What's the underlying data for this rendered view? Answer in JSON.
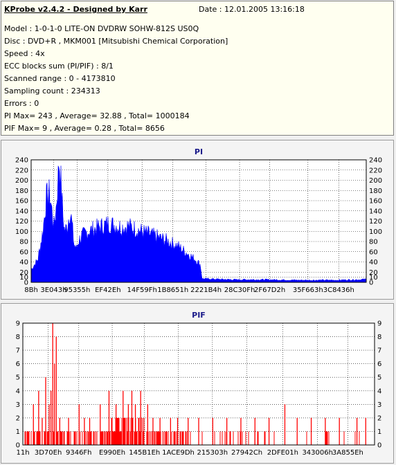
{
  "info": {
    "title": "KProbe v2.4.2 - Designed by Karr",
    "date": "Date : 12.01.2005 13:16:18",
    "lines": [
      "Model : 1-0-1-0 LITE-ON DVDRW SOHW-812S  US0Q",
      "Disc : DVD+R , MKM001 [Mitsubishi Chemical Corporation]",
      "Speed : 4x",
      "ECC blocks sum (PI/PIF) : 8/1",
      "Scanned range : 0 - 4173810",
      "Sampling count : 234313",
      "Errors : 0",
      "PI Max= 243 , Average= 32.88 , Total= 1000184",
      "PIF Max= 9 , Average= 0.28 , Total= 8656"
    ]
  },
  "colors": {
    "pi": "#0000ff",
    "pif": "#ff0000",
    "plot_bg": "#ffffff",
    "grid": "#000000"
  },
  "chart_data": [
    {
      "type": "area",
      "title": "PI",
      "ylim": [
        0,
        240
      ],
      "yticks": [
        0,
        10,
        20,
        40,
        60,
        80,
        100,
        120,
        140,
        160,
        180,
        200,
        220,
        240
      ],
      "xticks": [
        "8Bh",
        "3E043h",
        "95355h",
        "EF42Eh",
        "14F59Fh",
        "1B8651h",
        "2221B4h",
        "28C30Fh",
        "2F67D2h",
        "35F663h",
        "3C8436h"
      ],
      "grid": "dotted",
      "x_positions": [
        0,
        0.067,
        0.137,
        0.229,
        0.331,
        0.423,
        0.522,
        0.622,
        0.712,
        0.826,
        0.918
      ],
      "envelope": [
        [
          0.0,
          25
        ],
        [
          0.02,
          45
        ],
        [
          0.035,
          100
        ],
        [
          0.045,
          165
        ],
        [
          0.055,
          175
        ],
        [
          0.062,
          140
        ],
        [
          0.068,
          110
        ],
        [
          0.075,
          150
        ],
        [
          0.08,
          200
        ],
        [
          0.083,
          243
        ],
        [
          0.09,
          190
        ],
        [
          0.095,
          130
        ],
        [
          0.1,
          100
        ],
        [
          0.108,
          110
        ],
        [
          0.115,
          140
        ],
        [
          0.12,
          125
        ],
        [
          0.128,
          75
        ],
        [
          0.135,
          65
        ],
        [
          0.14,
          80
        ],
        [
          0.15,
          90
        ],
        [
          0.17,
          100
        ],
        [
          0.19,
          105
        ],
        [
          0.21,
          110
        ],
        [
          0.23,
          115
        ],
        [
          0.25,
          112
        ],
        [
          0.27,
          108
        ],
        [
          0.29,
          110
        ],
        [
          0.31,
          105
        ],
        [
          0.33,
          100
        ],
        [
          0.35,
          95
        ],
        [
          0.38,
          88
        ],
        [
          0.41,
          80
        ],
        [
          0.44,
          70
        ],
        [
          0.47,
          55
        ],
        [
          0.49,
          45
        ],
        [
          0.505,
          35
        ],
        [
          0.51,
          7
        ],
        [
          0.6,
          5
        ],
        [
          0.7,
          5
        ],
        [
          0.8,
          4
        ],
        [
          0.9,
          4
        ],
        [
          0.98,
          5
        ],
        [
          1.0,
          6
        ]
      ]
    },
    {
      "type": "bar",
      "title": "PIF",
      "ylim": [
        0,
        9
      ],
      "yticks": [
        0,
        1,
        2,
        3,
        4,
        5,
        6,
        7,
        8,
        9
      ],
      "xticks": [
        "11h",
        "3D70Eh",
        "9346Fh",
        "E990Eh",
        "145B1Eh",
        "1ACE9Dh",
        "215303h",
        "27942Ch",
        "2DFE01h",
        "343006h",
        "3A855Eh"
      ],
      "grid": "dotted",
      "x_positions": [
        0,
        0.072,
        0.159,
        0.254,
        0.346,
        0.442,
        0.539,
        0.637,
        0.739,
        0.838,
        0.924
      ],
      "spikes": [
        [
          0.03,
          3
        ],
        [
          0.045,
          4
        ],
        [
          0.055,
          2
        ],
        [
          0.065,
          5
        ],
        [
          0.075,
          3
        ],
        [
          0.08,
          4
        ],
        [
          0.085,
          9
        ],
        [
          0.09,
          6
        ],
        [
          0.095,
          8
        ],
        [
          0.105,
          2
        ],
        [
          0.13,
          2
        ],
        [
          0.16,
          3
        ],
        [
          0.175,
          2
        ],
        [
          0.19,
          2
        ],
        [
          0.22,
          3
        ],
        [
          0.245,
          4
        ],
        [
          0.265,
          3
        ],
        [
          0.285,
          4
        ],
        [
          0.3,
          3
        ],
        [
          0.31,
          4
        ],
        [
          0.32,
          3
        ],
        [
          0.335,
          4
        ],
        [
          0.355,
          3
        ],
        [
          0.37,
          2
        ],
        [
          0.39,
          2
        ],
        [
          0.42,
          2
        ],
        [
          0.44,
          2
        ],
        [
          0.47,
          2
        ],
        [
          0.5,
          2
        ],
        [
          0.54,
          2
        ],
        [
          0.58,
          2
        ],
        [
          0.62,
          2
        ],
        [
          0.66,
          2
        ],
        [
          0.7,
          2
        ],
        [
          0.745,
          3
        ],
        [
          0.78,
          2
        ],
        [
          0.82,
          2
        ],
        [
          0.86,
          2
        ],
        [
          0.9,
          2
        ],
        [
          0.95,
          2
        ],
        [
          0.975,
          2
        ]
      ]
    }
  ]
}
